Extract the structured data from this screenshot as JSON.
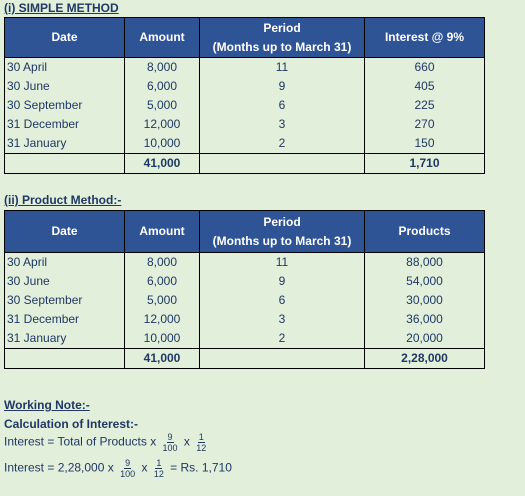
{
  "simple": {
    "title": "(i) SIMPLE METHOD",
    "headers": {
      "date": "Date",
      "amount": "Amount",
      "period_line1": "Period",
      "period_line2": "(Months up to March 31)",
      "interest": "Interest @ 9%"
    },
    "rows": [
      {
        "date": "30 April",
        "amount": "8,000",
        "period": "11",
        "value": "660"
      },
      {
        "date": "30 June",
        "amount": "6,000",
        "period": "9",
        "value": "405"
      },
      {
        "date": "30 September",
        "amount": "5,000",
        "period": "6",
        "value": "225"
      },
      {
        "date": "31 December",
        "amount": "12,000",
        "period": "3",
        "value": "270"
      },
      {
        "date": "31 January",
        "amount": "10,000",
        "period": "2",
        "value": "150"
      }
    ],
    "total_amount": "41,000",
    "total_value": "1,710"
  },
  "product": {
    "title": "(ii) Product Method:-",
    "headers": {
      "date": "Date",
      "amount": "Amount",
      "period_line1": "Period",
      "period_line2": "(Months up to March 31)",
      "products": "Products"
    },
    "rows": [
      {
        "date": "30 April",
        "amount": "8,000",
        "period": "11",
        "value": "88,000"
      },
      {
        "date": "30 June",
        "amount": "6,000",
        "period": "9",
        "value": "54,000"
      },
      {
        "date": "30 September",
        "amount": "5,000",
        "period": "6",
        "value": "30,000"
      },
      {
        "date": "31 December",
        "amount": "12,000",
        "period": "3",
        "value": "36,000"
      },
      {
        "date": "31 January",
        "amount": "10,000",
        "period": "2",
        "value": "20,000"
      }
    ],
    "total_amount": "41,000",
    "total_value": "2,28,000"
  },
  "working": {
    "title": "Working Note:-",
    "subtitle": "Calculation of Interest:-",
    "line1_prefix": "Interest = Total of Products x",
    "line2_prefix": "Interest = 2,28,000 x",
    "x": "x",
    "result": "= Rs. 1,710",
    "frac1_num": "9",
    "frac1_den": "100",
    "frac2_num": "1",
    "frac2_den": "12"
  }
}
